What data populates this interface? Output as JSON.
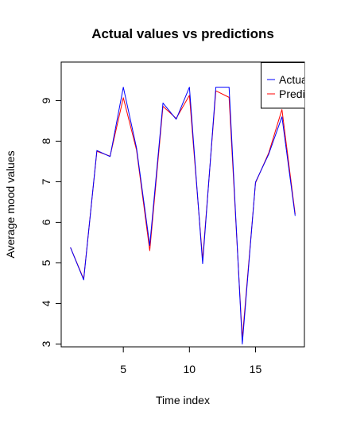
{
  "chart_data": {
    "type": "line",
    "title": "Actual values vs predictions",
    "xlabel": "Time index",
    "ylabel": "Average mood values",
    "xlim": [
      0.3,
      18.7
    ],
    "ylim": [
      2.93,
      9.95
    ],
    "x_ticks": [
      5,
      10,
      15
    ],
    "y_ticks": [
      3,
      4,
      5,
      6,
      7,
      8,
      9
    ],
    "x": [
      1,
      2,
      3,
      4,
      5,
      6,
      7,
      8,
      9,
      10,
      11,
      12,
      13,
      14,
      15,
      16,
      17,
      18
    ],
    "series": [
      {
        "name": "Actual",
        "color": "#0000ff",
        "values": [
          5.38,
          4.58,
          7.77,
          7.62,
          9.33,
          7.83,
          5.43,
          8.94,
          8.54,
          9.33,
          4.98,
          9.33,
          9.33,
          3.0,
          6.99,
          7.68,
          8.6,
          6.16
        ]
      },
      {
        "name": "Predictions",
        "color": "#ff0000",
        "values": [
          5.38,
          4.6,
          7.75,
          7.63,
          9.07,
          7.78,
          5.3,
          8.86,
          8.56,
          9.13,
          5.07,
          9.24,
          9.08,
          3.12,
          6.97,
          7.71,
          8.78,
          6.2
        ]
      }
    ],
    "legend": {
      "position": "top-right",
      "entries": [
        "Actual",
        "Predictions"
      ]
    }
  }
}
